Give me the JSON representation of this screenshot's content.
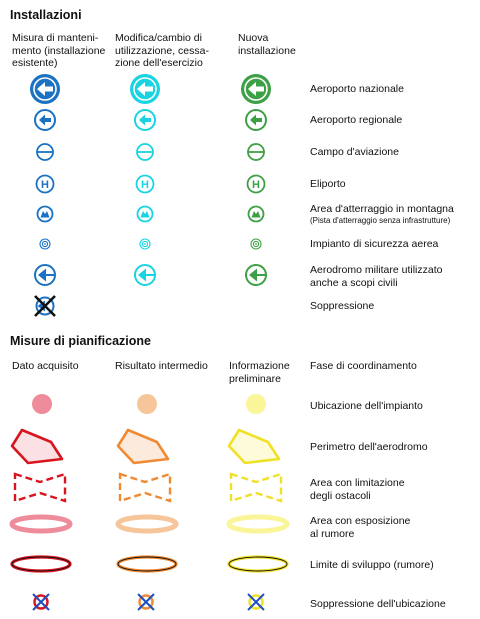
{
  "colors": {
    "existing": "#1b72c2",
    "change": "#18d4e3",
    "new": "#3ea046",
    "acquired_fill": "#ee8c9b",
    "acquired_stroke": "#d8151e",
    "intermediate_fill": "#f6c59a",
    "intermediate_stroke": "#ef8a33",
    "preliminary_fill": "#fbf59a",
    "preliminary_stroke": "#f0e028"
  },
  "installations": {
    "title": "Installazioni",
    "columns": [
      "Misura di manteni-\nmento (installazione\nesistente)",
      "Modifica/cambio di\nutilizzazione, cessa-\nzione dell'esercizio",
      "Nuova\ninstallazione"
    ],
    "rows": [
      {
        "label": "Aeroporto nazionale",
        "icon": "national-airport-icon"
      },
      {
        "label": "Aeroporto regionale",
        "icon": "regional-airport-icon"
      },
      {
        "label": "Campo d'aviazione",
        "icon": "airfield-icon"
      },
      {
        "label": "Eliporto",
        "icon": "heliport-icon",
        "glyph": "H"
      },
      {
        "label": "Area d'atterraggio in montagna",
        "sublabel": "(Pista d'atterraggio senza infrastrutture)",
        "icon": "mountain-landing-icon"
      },
      {
        "label": "Impianto di sicurezza aerea",
        "icon": "air-safety-facility-icon"
      },
      {
        "label": "Aerodromo militare utilizzato\nanche a scopi civili",
        "icon": "military-aerodrome-icon"
      },
      {
        "label": "Soppressione",
        "icon": "removal-icon"
      }
    ]
  },
  "planning": {
    "title": "Misure di pianificazione",
    "columns": [
      "Dato acquisito",
      "Risultato intermedio",
      "Informazione\npreliminare",
      "Fase di coordinamento"
    ],
    "rows": [
      {
        "label": "Ubicazione dell'impianto",
        "icon": "site-location-icon"
      },
      {
        "label": "Perimetro dell'aerodromo",
        "icon": "aerodrome-perimeter-icon"
      },
      {
        "label": "Area con limitazione\ndegli ostacoli",
        "icon": "obstacle-limitation-area-icon"
      },
      {
        "label": "Area con esposizione\nal rumore",
        "icon": "noise-exposure-area-icon"
      },
      {
        "label": "Limite di sviluppo (rumore)",
        "icon": "noise-development-limit-icon"
      },
      {
        "label": "Soppressione dell'ubicazione",
        "icon": "location-removal-icon"
      }
    ]
  }
}
